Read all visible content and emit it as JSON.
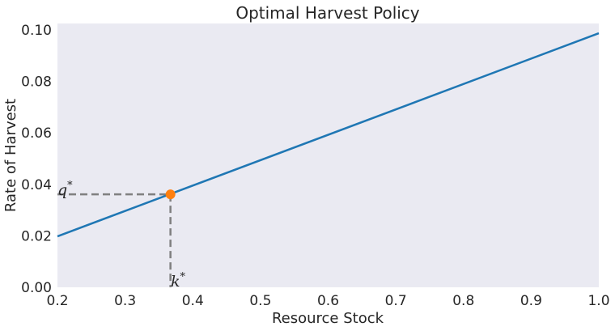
{
  "chart_data": {
    "type": "line",
    "title": "Optimal Harvest Policy",
    "xlabel": "Resource Stock",
    "ylabel": "Rate of Harvest",
    "xlim": [
      0.2,
      1.0
    ],
    "ylim": [
      0.0,
      0.1025
    ],
    "xticks": [
      "0.2",
      "0.3",
      "0.4",
      "0.5",
      "0.6",
      "0.7",
      "0.8",
      "0.9",
      "1.0"
    ],
    "yticks": [
      "0.00",
      "0.02",
      "0.04",
      "0.06",
      "0.08",
      "0.10"
    ],
    "grid": false,
    "series": [
      {
        "x": [
          0.2,
          1.0
        ],
        "y": [
          0.0198,
          0.0987
        ],
        "color": "#1f77b4"
      }
    ],
    "steady_state": {
      "x": 0.367,
      "y": 0.0361,
      "color": "#ff7f0e"
    },
    "annotations": {
      "q_label": "q",
      "k_label": "k",
      "superscript": "*"
    },
    "colors": {
      "plot_background": "#eaeaf2",
      "guide_lines": "#808080"
    }
  }
}
